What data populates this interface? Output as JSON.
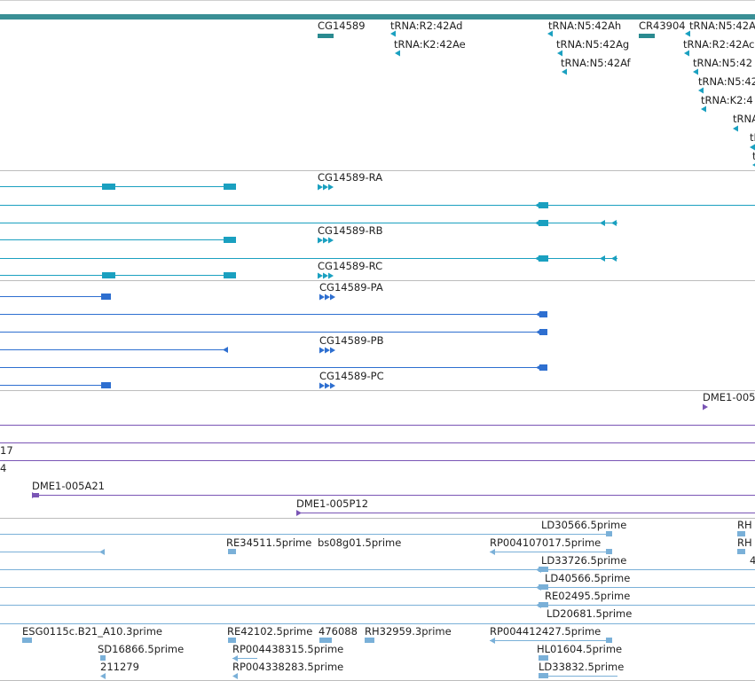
{
  "colors": {
    "gene": "#2a8a90",
    "transcript": "#1aa0c0",
    "protein": "#2e6fd0",
    "clone": "#7a55b5",
    "est": "#7ab0d8",
    "divider": "#bdbdbd",
    "header_bar": "#3a8f95"
  },
  "gene_track": {
    "labels": [
      "CG14589",
      "tRNA:R2:42Ad",
      "tRNA:K2:42Ae",
      "tRNA:N5:42Ah",
      "tRNA:N5:42Ag",
      "tRNA:N5:42Af",
      "CR43904",
      "tRNA:N5:42A",
      "tRNA:R2:42Ac",
      "tRNA:N5:42",
      "tRNA:N5:42",
      "tRNA:K2:4",
      "tRNA",
      "tR",
      "t"
    ]
  },
  "transcript_track": {
    "labels": [
      "CG14589-RA",
      "CG14589-RB",
      "CG14589-RC"
    ]
  },
  "protein_track": {
    "labels": [
      "CG14589-PA",
      "CG14589-PB",
      "CG14589-PC"
    ]
  },
  "clone_track": {
    "labels": [
      "DME1-005",
      "17",
      "4",
      "DME1-005A21",
      "DME1-005P12"
    ]
  },
  "est_track": {
    "labels": [
      "LD30566.5prime",
      "RH",
      "RE34511.5prime",
      "bs08g01.5prime",
      "RP004107017.5prime",
      "RH",
      "LD33726.5prime",
      "4",
      "LD40566.5prime",
      "RE02495.5prime",
      "LD20681.5prime",
      "ESG0115c.B21_A10.3prime",
      "RE42102.5prime",
      "476088",
      "RH32959.3prime",
      "RP004412427.5prime",
      "SD16866.5prime",
      "RP004438315.5prime",
      "HL01604.5prime",
      "211279",
      "RP004338283.5prime",
      "LD33832.5prime"
    ]
  }
}
